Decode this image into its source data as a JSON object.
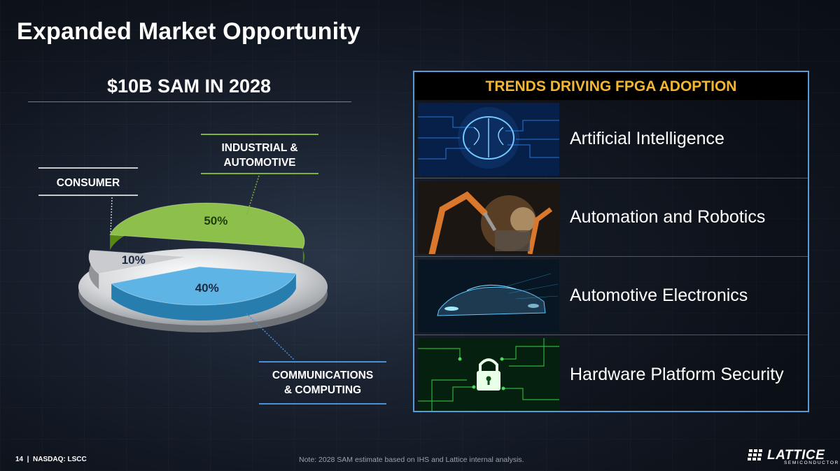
{
  "slide": {
    "title": "Expanded Market Opportunity",
    "page_number": "14",
    "ticker": "NASDAQ: LSCC",
    "footnote": "Note: 2028 SAM estimate based on IHS and Lattice internal analysis.",
    "logo": {
      "name": "LATTICE",
      "subtitle": "SEMICONDUCTOR"
    }
  },
  "sam": {
    "title": "$10B SAM IN 2028",
    "labels": {
      "industrial": [
        "INDUSTRIAL &",
        "AUTOMOTIVE"
      ],
      "consumer": "CONSUMER",
      "communications": [
        "COMMUNICATIONS",
        "& COMPUTING"
      ]
    }
  },
  "chart_data": {
    "type": "pie",
    "title": "$10B SAM IN 2028",
    "categories": [
      "INDUSTRIAL & AUTOMOTIVE",
      "COMMUNICATIONS & COMPUTING",
      "CONSUMER"
    ],
    "values": [
      50,
      40,
      10
    ],
    "value_labels": [
      "50%",
      "40%",
      "10%"
    ],
    "colors": [
      "#8cc04a",
      "#5fb4e6",
      "#c9cbce"
    ],
    "style": "3d-exploded",
    "legend": "callout-labels"
  },
  "trends": {
    "header": "TRENDS DRIVING FPGA ADOPTION",
    "header_color": "#f2b632",
    "items": [
      {
        "label": "Artificial Intelligence",
        "icon": "brain-circuit-image"
      },
      {
        "label": "Automation and Robotics",
        "icon": "robot-arm-image"
      },
      {
        "label": "Automotive Electronics",
        "icon": "car-image"
      },
      {
        "label": "Hardware Platform Security",
        "icon": "padlock-circuit-image"
      }
    ]
  }
}
